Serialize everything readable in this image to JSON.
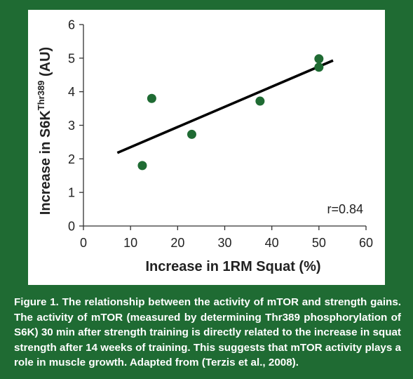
{
  "colors": {
    "background": "#1f6b33",
    "panel": "#ffffff",
    "marker": "#1f6b33",
    "line": "#000000",
    "caption_text": "#ffffff"
  },
  "chart_data": {
    "type": "scatter",
    "ylabel_main": "Increase in S6K",
    "ylabel_sup": "Thr389",
    "ylabel_tail": " (AU)",
    "xlabel": "Increase in 1RM Squat (%)",
    "xlim": [
      0,
      60
    ],
    "ylim": [
      0,
      6
    ],
    "xticks": [
      0,
      10,
      20,
      30,
      40,
      50,
      60
    ],
    "yticks": [
      0,
      1,
      2,
      3,
      4,
      5,
      6
    ],
    "points": [
      {
        "x": 12.5,
        "y": 1.8
      },
      {
        "x": 14.5,
        "y": 3.8
      },
      {
        "x": 23,
        "y": 2.73
      },
      {
        "x": 37.5,
        "y": 3.72
      },
      {
        "x": 50,
        "y": 4.98
      },
      {
        "x": 50,
        "y": 4.73
      }
    ],
    "trendline": {
      "x1": 7.2,
      "y1": 2.18,
      "x2": 53,
      "y2": 4.93
    },
    "annotation": "r=0.84",
    "grid": false
  },
  "caption": "Figure 1. The relationship between the activity of mTOR and strength gains. The activity of mTOR (measured by determining Thr389 phosphorylation of S6K) 30 min after strength training is directly related to the increase in squat strength after 14 weeks of training. This suggests that mTOR activity plays a role in muscle growth. Adapted from (Terzis et al., 2008)."
}
